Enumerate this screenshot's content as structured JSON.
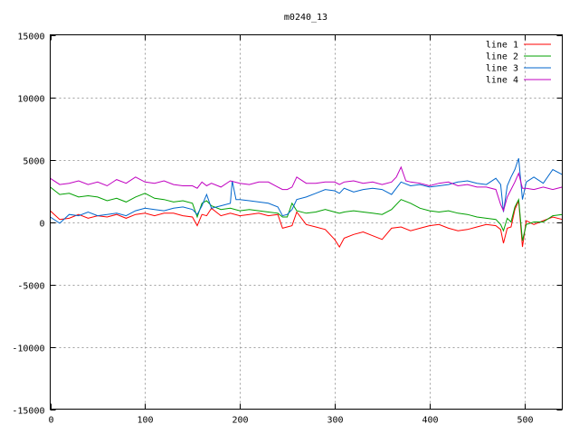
{
  "chart_data": {
    "type": "line",
    "title": "m0240_13",
    "xlim": [
      0,
      540
    ],
    "ylim": [
      -15000,
      15000
    ],
    "xticks": [
      0,
      100,
      200,
      300,
      400,
      500
    ],
    "yticks": [
      -15000,
      -10000,
      -5000,
      0,
      5000,
      10000,
      15000
    ],
    "grid": true,
    "legend_position": "top-right",
    "series": [
      {
        "name": "line 1",
        "color": "#ff0000",
        "x": [
          0,
          10,
          20,
          30,
          40,
          50,
          60,
          70,
          80,
          90,
          100,
          110,
          120,
          130,
          140,
          150,
          155,
          160,
          165,
          170,
          180,
          190,
          200,
          210,
          220,
          230,
          240,
          245,
          250,
          255,
          260,
          270,
          280,
          290,
          300,
          305,
          310,
          320,
          330,
          340,
          350,
          360,
          370,
          380,
          390,
          400,
          410,
          420,
          430,
          440,
          450,
          460,
          470,
          475,
          478,
          482,
          486,
          490,
          494,
          498,
          502,
          510,
          520,
          530,
          540
        ],
        "y": [
          900,
          200,
          300,
          600,
          300,
          500,
          400,
          600,
          300,
          600,
          700,
          500,
          700,
          700,
          500,
          400,
          -300,
          600,
          500,
          1100,
          500,
          700,
          500,
          600,
          700,
          500,
          600,
          -500,
          -400,
          -300,
          800,
          -200,
          -400,
          -600,
          -1400,
          -2000,
          -1300,
          -1000,
          -800,
          -1100,
          -1400,
          -500,
          -400,
          -700,
          -500,
          -300,
          -200,
          -500,
          -700,
          -600,
          -400,
          -200,
          -300,
          -600,
          -1700,
          -500,
          -400,
          1000,
          1700,
          -2000,
          100,
          -200,
          100,
          400,
          200
        ]
      },
      {
        "name": "line 2",
        "color": "#00a000",
        "x": [
          0,
          10,
          20,
          30,
          40,
          50,
          60,
          70,
          80,
          90,
          100,
          110,
          120,
          130,
          140,
          150,
          155,
          160,
          165,
          170,
          180,
          190,
          200,
          210,
          220,
          230,
          240,
          245,
          250,
          255,
          260,
          270,
          280,
          290,
          300,
          305,
          310,
          320,
          330,
          340,
          350,
          360,
          370,
          380,
          390,
          400,
          410,
          420,
          430,
          440,
          450,
          460,
          470,
          475,
          478,
          482,
          486,
          490,
          494,
          498,
          502,
          510,
          520,
          530,
          540
        ],
        "y": [
          2800,
          2200,
          2300,
          2000,
          2100,
          2000,
          1700,
          1900,
          1600,
          2000,
          2300,
          1900,
          1800,
          1600,
          1700,
          1500,
          400,
          1500,
          1700,
          1300,
          1000,
          1100,
          900,
          1000,
          900,
          800,
          700,
          400,
          400,
          1500,
          900,
          700,
          800,
          1000,
          800,
          700,
          800,
          900,
          800,
          700,
          600,
          1000,
          1800,
          1500,
          1100,
          900,
          800,
          900,
          700,
          600,
          400,
          300,
          200,
          -200,
          -700,
          300,
          0,
          1200,
          1800,
          -1500,
          -200,
          0,
          0,
          500,
          600
        ]
      },
      {
        "name": "line 3",
        "color": "#0066cc",
        "x": [
          0,
          10,
          20,
          30,
          40,
          50,
          60,
          70,
          80,
          90,
          100,
          110,
          120,
          130,
          140,
          150,
          155,
          160,
          165,
          170,
          180,
          190,
          192,
          196,
          200,
          210,
          220,
          230,
          240,
          245,
          250,
          255,
          260,
          270,
          280,
          290,
          300,
          305,
          310,
          320,
          330,
          340,
          350,
          360,
          370,
          380,
          390,
          400,
          410,
          420,
          430,
          440,
          450,
          460,
          470,
          475,
          478,
          482,
          486,
          490,
          494,
          498,
          502,
          510,
          520,
          530,
          540
        ],
        "y": [
          400,
          -100,
          600,
          500,
          800,
          500,
          600,
          700,
          500,
          900,
          1100,
          1000,
          900,
          1100,
          1200,
          1000,
          600,
          1300,
          2200,
          1100,
          1300,
          1500,
          3300,
          1800,
          1800,
          1700,
          1600,
          1500,
          1200,
          500,
          600,
          1000,
          1800,
          2000,
          2300,
          2600,
          2500,
          2300,
          2700,
          2400,
          2600,
          2700,
          2600,
          2200,
          3200,
          2900,
          3000,
          2800,
          2900,
          3000,
          3200,
          3300,
          3100,
          3000,
          3500,
          3000,
          800,
          2900,
          3600,
          4200,
          5100,
          1800,
          3200,
          3600,
          3100,
          4200,
          3800
        ]
      },
      {
        "name": "line 4",
        "color": "#c000c0",
        "x": [
          0,
          10,
          20,
          30,
          40,
          50,
          60,
          70,
          80,
          90,
          100,
          110,
          120,
          130,
          140,
          150,
          155,
          160,
          165,
          170,
          180,
          190,
          200,
          210,
          220,
          230,
          240,
          245,
          250,
          255,
          260,
          270,
          280,
          290,
          300,
          305,
          310,
          320,
          330,
          340,
          350,
          360,
          365,
          370,
          375,
          380,
          390,
          400,
          410,
          420,
          430,
          440,
          450,
          460,
          470,
          475,
          478,
          482,
          486,
          490,
          494,
          498,
          502,
          510,
          520,
          530,
          540
        ],
        "y": [
          3500,
          3000,
          3100,
          3300,
          3000,
          3200,
          2900,
          3400,
          3100,
          3600,
          3200,
          3100,
          3300,
          3000,
          2900,
          2900,
          2700,
          3200,
          2900,
          3100,
          2800,
          3300,
          3100,
          3000,
          3200,
          3200,
          2800,
          2600,
          2600,
          2800,
          3600,
          3100,
          3100,
          3200,
          3200,
          3000,
          3200,
          3300,
          3100,
          3200,
          3000,
          3200,
          3600,
          4400,
          3300,
          3200,
          3100,
          2900,
          3100,
          3200,
          2900,
          3000,
          2800,
          2800,
          2600,
          1400,
          900,
          2000,
          2600,
          3200,
          3900,
          2700,
          2700,
          2600,
          2800,
          2600,
          2800
        ]
      }
    ]
  }
}
